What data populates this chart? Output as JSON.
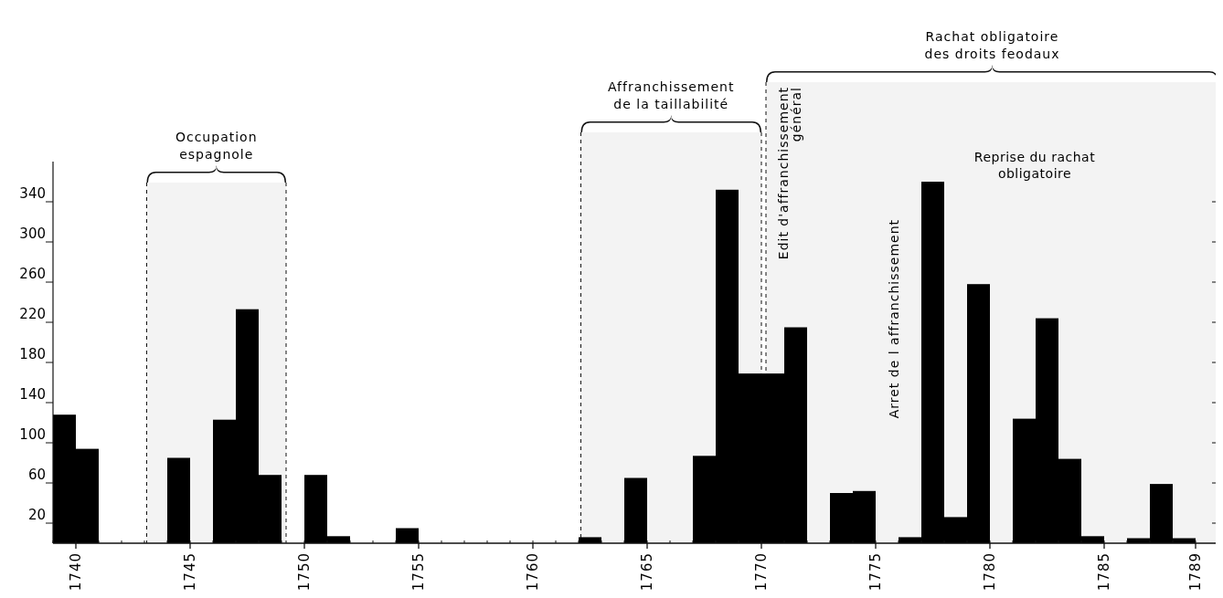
{
  "chart_data": {
    "type": "histogram",
    "color": "#000000",
    "bins": [
      1739,
      1740,
      1741,
      1742,
      1743,
      1744,
      1745,
      1746,
      1747,
      1748,
      1749,
      1750,
      1751,
      1752,
      1753,
      1754,
      1755,
      1756,
      1757,
      1758,
      1759,
      1760,
      1761,
      1762,
      1763,
      1764,
      1765,
      1766,
      1767,
      1768,
      1769,
      1770,
      1771,
      1772,
      1773,
      1774,
      1775,
      1776,
      1777,
      1778,
      1779,
      1780,
      1781,
      1782,
      1783,
      1784,
      1785,
      1786,
      1787,
      1788,
      1789
    ],
    "values": [
      128,
      94,
      0,
      0,
      0,
      85,
      0,
      123,
      233,
      68,
      0,
      68,
      7,
      0,
      0,
      15,
      0,
      0,
      0,
      0,
      0,
      0,
      0,
      6,
      0,
      65,
      0,
      0,
      87,
      352,
      169,
      169,
      215,
      0,
      50,
      52,
      0,
      6,
      360,
      26,
      258,
      0,
      124,
      224,
      84,
      7,
      0,
      5,
      59,
      5
    ],
    "xlim": [
      1739,
      1790
    ],
    "xticks": [
      1740,
      1745,
      1750,
      1755,
      1760,
      1765,
      1770,
      1775,
      1780,
      1785,
      1789
    ],
    "ylim": [
      0,
      380
    ],
    "yticks": [
      20,
      60,
      100,
      140,
      180,
      220,
      260,
      300,
      340
    ],
    "bands": [
      {
        "axis": "x",
        "from": 1743.1,
        "to": 1749.2,
        "label": "Occupation espagnole",
        "color": "#f3f3f3"
      },
      {
        "axis": "x",
        "from": 1762.1,
        "to": 1770,
        "label": "Affranchissement de la taillabilité",
        "color": "#f3f3f3"
      },
      {
        "axis": "x",
        "from": 1770.2,
        "to": 1790,
        "label": "Rachat obligatoire des droits feodaux",
        "color": "#f3f3f3"
      }
    ],
    "annotations": [
      "Edit d'affranchissement général",
      "Arret de l affranchissement",
      "Reprise du rachat obligatoire"
    ]
  }
}
